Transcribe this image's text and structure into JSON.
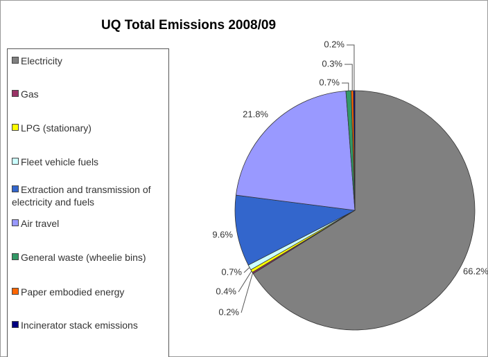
{
  "chart_data": {
    "type": "pie",
    "title": "UQ Total Emissions 2008/09",
    "categories": [
      "Electricity",
      "Gas",
      "LPG (stationary)",
      "Fleet vehicle fuels",
      "Extraction and transmission of electricity and fuels",
      "Air travel",
      "General waste (wheelie bins)",
      "Paper embodied energy",
      "Incinerator stack emissions"
    ],
    "values": [
      66.2,
      0.2,
      0.4,
      0.7,
      9.6,
      21.8,
      0.7,
      0.3,
      0.2
    ],
    "value_labels": [
      "66.2%",
      "0.2%",
      "0.4%",
      "0.7%",
      "9.6%",
      "21.8%",
      "0.7%",
      "0.3%",
      "0.2%"
    ],
    "colors": [
      "#808080",
      "#993366",
      "#ffff00",
      "#ccffff",
      "#3366cc",
      "#9999ff",
      "#339966",
      "#ff6600",
      "#000080"
    ],
    "legend": "left"
  }
}
